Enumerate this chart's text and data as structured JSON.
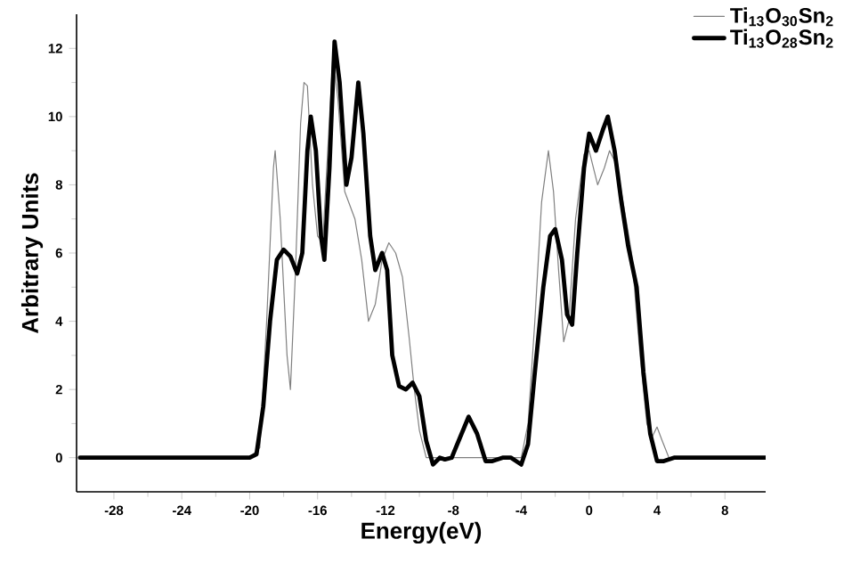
{
  "chart_data": {
    "type": "line",
    "xlabel": "Energy(eV)",
    "ylabel": "Arbitrary Units",
    "xlim": [
      -30.2,
      10.4
    ],
    "ylim": [
      -1,
      13
    ],
    "xticks": [
      -28,
      -24,
      -20,
      -16,
      -12,
      -8,
      -4,
      0,
      4,
      8
    ],
    "yticks": [
      0,
      2,
      4,
      6,
      8,
      10,
      12
    ],
    "legend": "top right",
    "grid": false,
    "marker": "none",
    "line_style": "solid",
    "series": [
      {
        "name": "Ti$_{13}$O$_{30}$Sn$_{2}$",
        "color": "#808080",
        "x": [
          -30,
          -20,
          -19.4,
          -19,
          -18.6,
          -18.5,
          -18.2,
          -17.8,
          -17.6,
          -17.3,
          -17,
          -16.8,
          -16.6,
          -16.3,
          -16,
          -15.7,
          -15.4,
          -15.1,
          -14.8,
          -14.4,
          -13.8,
          -13.4,
          -13,
          -12.6,
          -12.2,
          -11.8,
          -11.4,
          -11,
          -10.6,
          -10.3,
          -10,
          -9.6,
          -4,
          -3.6,
          -3.2,
          -2.8,
          -2.4,
          -2.1,
          -1.8,
          -1.5,
          -1.2,
          -0.8,
          -0.3,
          0,
          0.5,
          0.9,
          1.2,
          1.6,
          2,
          2.5,
          3,
          3.4,
          3.7,
          4,
          4.3,
          4.7,
          10.4
        ],
        "values": [
          0,
          0,
          0.3,
          4,
          8.5,
          9,
          7,
          3,
          2,
          5.5,
          9.8,
          11,
          10.9,
          8,
          6.5,
          6.3,
          9,
          11.8,
          10.5,
          7.8,
          7,
          5.8,
          4,
          4.5,
          5.8,
          6.3,
          6,
          5.3,
          3.5,
          2,
          0.8,
          0,
          0,
          1,
          4,
          7.5,
          9,
          7.8,
          5.5,
          3.4,
          4,
          7,
          8.9,
          9,
          8,
          8.5,
          9,
          8.6,
          7.5,
          6,
          3,
          1,
          0.6,
          0.9,
          0.5,
          0,
          0
        ]
      },
      {
        "name": "Ti$_{13}$O$_{28}$Sn$_{2}$",
        "color": "#000000",
        "x": [
          -30,
          -20,
          -19.6,
          -19.2,
          -18.8,
          -18.4,
          -18,
          -17.6,
          -17.2,
          -16.9,
          -16.6,
          -16.4,
          -16.1,
          -15.8,
          -15.6,
          -15.3,
          -15,
          -14.7,
          -14.3,
          -14,
          -13.6,
          -13.3,
          -12.9,
          -12.6,
          -12.2,
          -11.9,
          -11.6,
          -11.2,
          -10.8,
          -10.4,
          -10,
          -9.6,
          -9.2,
          -8.8,
          -8.5,
          -8.1,
          -7.6,
          -7.1,
          -6.6,
          -6.1,
          -5.7,
          -5.1,
          -4.6,
          -4,
          -3.6,
          -3.2,
          -2.7,
          -2.3,
          -2,
          -1.6,
          -1.3,
          -1,
          -0.7,
          -0.3,
          0,
          0.4,
          0.8,
          1.1,
          1.5,
          1.9,
          2.3,
          2.8,
          3.2,
          3.6,
          4,
          4.4,
          5,
          10.4
        ],
        "values": [
          0,
          0,
          0.1,
          1.5,
          4,
          5.8,
          6.1,
          5.9,
          5.4,
          6,
          9,
          10,
          9,
          6.5,
          5.8,
          8.5,
          12.2,
          11,
          8,
          8.8,
          11,
          9.5,
          6.5,
          5.5,
          6,
          5.5,
          3,
          2.1,
          2,
          2.2,
          1.8,
          0.5,
          -0.2,
          0,
          -0.05,
          0,
          0.6,
          1.2,
          0.7,
          -0.1,
          -0.1,
          0,
          0,
          -0.2,
          0.4,
          2.5,
          5,
          6.5,
          6.7,
          5.8,
          4.2,
          3.9,
          6,
          8.5,
          9.5,
          9,
          9.6,
          10,
          9,
          7.5,
          6.2,
          5,
          2.5,
          0.7,
          -0.1,
          -0.1,
          0,
          0
        ]
      }
    ]
  }
}
